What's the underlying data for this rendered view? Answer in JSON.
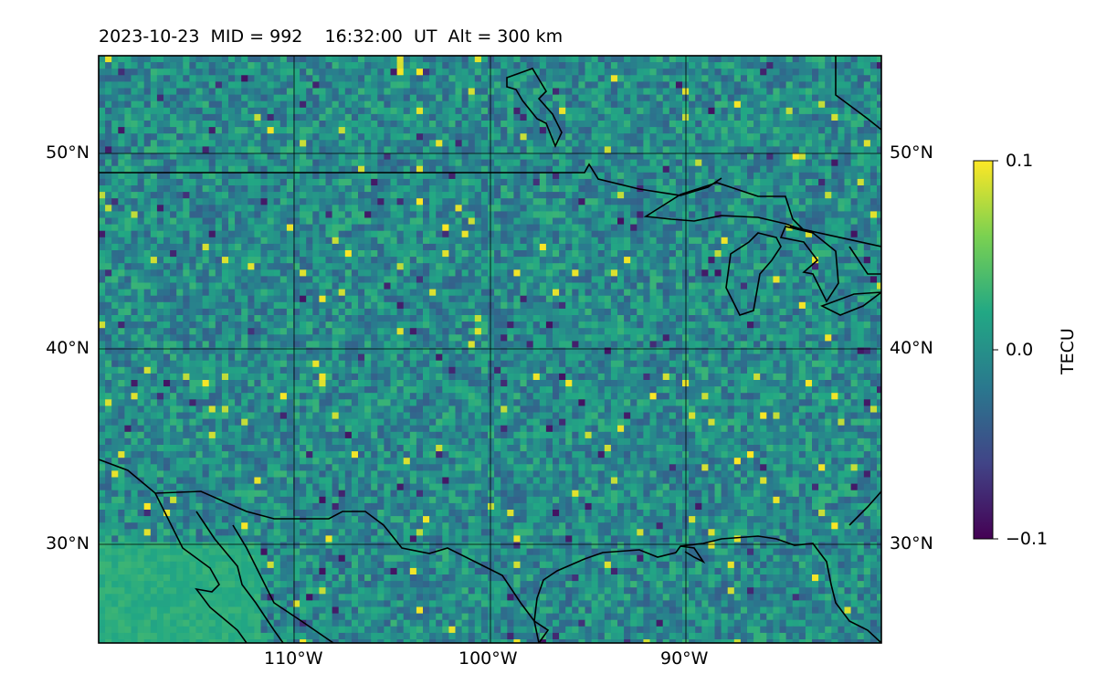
{
  "title": "2023-10-23  MID = 992    16:32:00  UT  Alt = 300 km",
  "map": {
    "lon_range": [
      -120,
      -80
    ],
    "lat_range": [
      25,
      55
    ],
    "lat_ticks": [
      {
        "value": 50,
        "label": "50°N"
      },
      {
        "value": 40,
        "label": "40°N"
      },
      {
        "value": 30,
        "label": "30°N"
      }
    ],
    "lon_ticks": [
      {
        "value": -110,
        "label": "110°W"
      },
      {
        "value": -100,
        "label": "100°W"
      },
      {
        "value": -90,
        "label": "90°W"
      }
    ],
    "gridlines": true,
    "field": "differential TEC perturbation",
    "colormap": "viridis"
  },
  "colorbar": {
    "label": "TECU",
    "min": -0.1,
    "max": 0.1,
    "ticks": [
      {
        "value": 0.1,
        "label": "0.1"
      },
      {
        "value": 0.0,
        "label": "0.0"
      },
      {
        "value": -0.1,
        "label": "−0.1"
      }
    ]
  },
  "colors": {
    "viridis": [
      "#440154",
      "#414487",
      "#2a788e",
      "#22a884",
      "#7ad151",
      "#fde725"
    ],
    "coastline": "#000000"
  }
}
